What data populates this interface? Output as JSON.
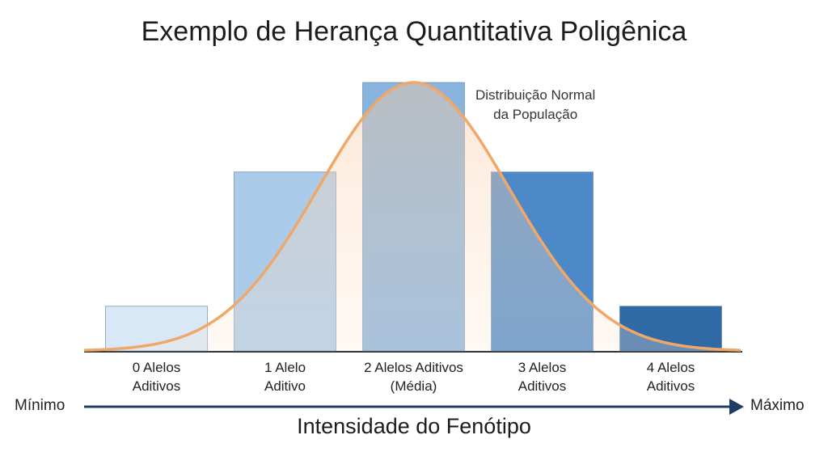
{
  "chart_data": {
    "type": "bar",
    "title": "Exemplo de Herança Quantitativa Poligênica",
    "annotation": "Distribuição Normal\nda População",
    "categories": [
      "0 Alelos\nAditivos",
      "1 Alelo\nAditivo",
      "2 Alelos Aditivos\n(Média)",
      "3 Alelos\nAditivos",
      "4 Alelos\nAditivos"
    ],
    "values": [
      1,
      4,
      6,
      4,
      1
    ],
    "colors": [
      "#d8e8f6",
      "#aacbea",
      "#88b4dd",
      "#4d89c8",
      "#2f69a6"
    ],
    "curve_color": "#f0a868",
    "x_label": "Intensidade do Fenótipo",
    "x_min_label": "Mínimo",
    "x_max_label": "Máximo"
  }
}
